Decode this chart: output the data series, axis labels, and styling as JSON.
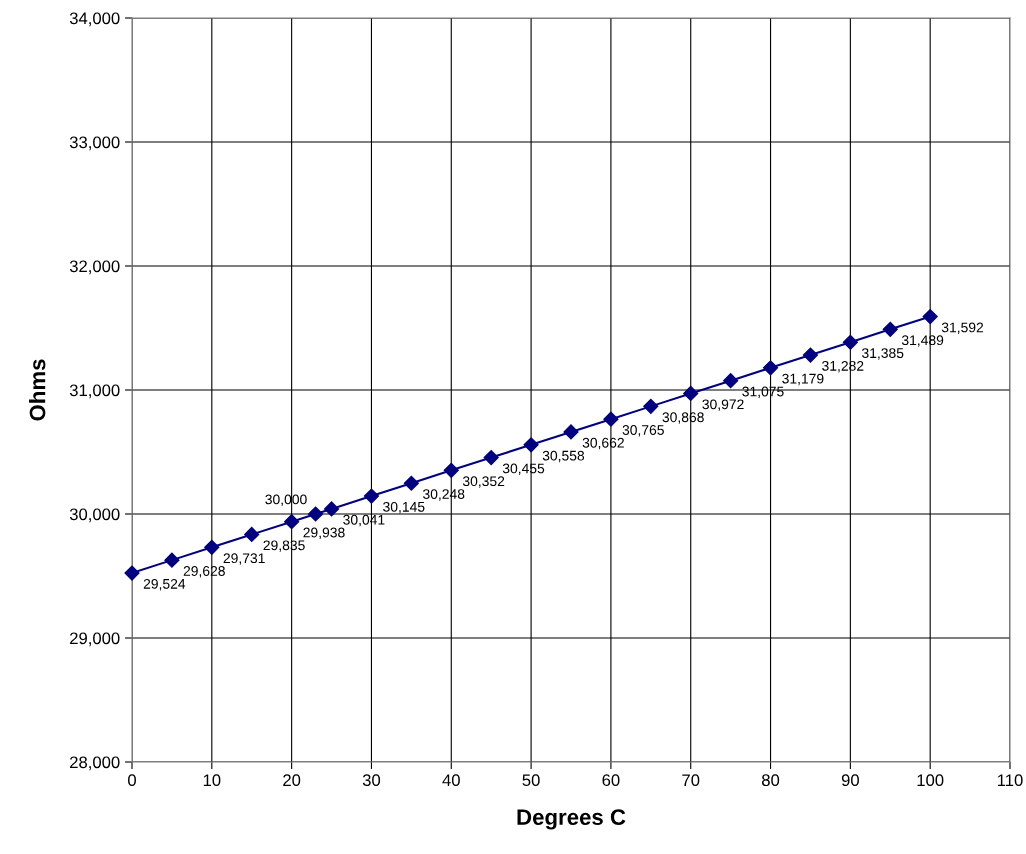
{
  "chart_data": {
    "type": "line",
    "xlabel": "Degrees C",
    "ylabel": "Ohms",
    "x": [
      0,
      5,
      10,
      15,
      20,
      23,
      25,
      30,
      35,
      40,
      45,
      50,
      55,
      60,
      65,
      70,
      75,
      80,
      85,
      90,
      95,
      100
    ],
    "series": [
      {
        "color": "#000080",
        "values": [
          29524,
          29628,
          29731,
          29835,
          29938,
          30000,
          30041,
          30145,
          30248,
          30352,
          30455,
          30558,
          30662,
          30765,
          30868,
          30972,
          31075,
          31179,
          31282,
          31385,
          31489,
          31592
        ],
        "value_labels": [
          "29,524",
          "29,628",
          "29,731",
          "29,835",
          "29,938",
          "30,000",
          "30,041",
          "30,145",
          "30,248",
          "30,352",
          "30,455",
          "30,558",
          "30,662",
          "30,765",
          "30,868",
          "30,972",
          "31,075",
          "31,179",
          "31,282",
          "31,385",
          "31,489",
          "31,592"
        ]
      }
    ],
    "xlim": [
      0,
      110
    ],
    "xticks": [
      0,
      10,
      20,
      30,
      40,
      50,
      60,
      70,
      80,
      90,
      100,
      110
    ],
    "ylim": [
      28000,
      34000
    ],
    "yticks": [
      {
        "value": 28000,
        "label": "28,000"
      },
      {
        "value": 29000,
        "label": "29,000"
      },
      {
        "value": 30000,
        "label": "30,000"
      },
      {
        "value": 31000,
        "label": "31,000"
      },
      {
        "value": 32000,
        "label": "32,000"
      },
      {
        "value": 33000,
        "label": "33,000"
      },
      {
        "value": 34000,
        "label": "34,000"
      }
    ],
    "grid": true,
    "marker": "diamond",
    "line_style": "solid"
  }
}
